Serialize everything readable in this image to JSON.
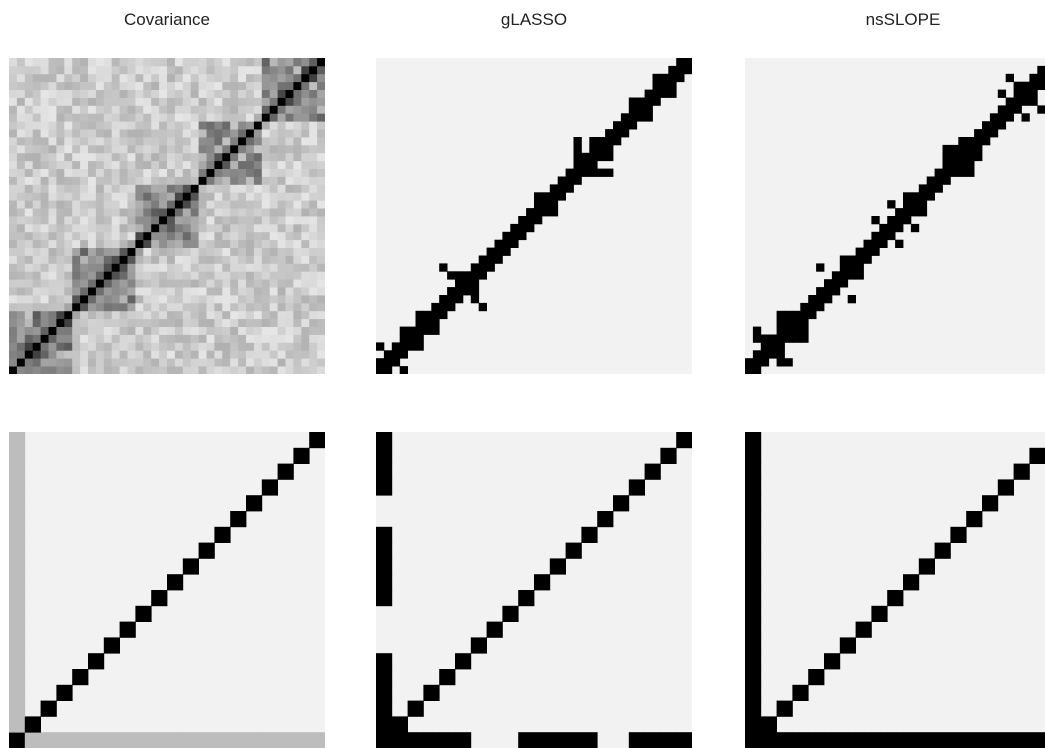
{
  "colors": {
    "background": "#f2f2f2",
    "filled": "#000000",
    "axis_band": "#bdbdbd"
  },
  "columns": [
    {
      "title": "Covariance"
    },
    {
      "title": "gLASSO"
    },
    {
      "title": "nsSLOPE"
    }
  ],
  "chart_data": [
    {
      "type": "heatmap",
      "title": "Covariance",
      "row": "top",
      "n": 40,
      "pattern": "noisy-covariance",
      "values": "continuous grayscale magnitudes; diagonal fully dark; darker 8x8 blocks along the diagonal"
    },
    {
      "type": "heatmap",
      "title": "gLASSO",
      "row": "top",
      "n": 40,
      "pattern": "sparse-binary-blocks",
      "blocks": [
        [
          0,
          5
        ],
        [
          8,
          13
        ],
        [
          16,
          21
        ],
        [
          24,
          29
        ],
        [
          32,
          37
        ]
      ],
      "dense_blocks": [
        [
          5,
          7
        ],
        [
          20,
          22
        ],
        [
          25,
          27
        ],
        [
          32,
          34
        ],
        [
          35,
          37
        ]
      ]
    },
    {
      "type": "heatmap",
      "title": "nsSLOPE",
      "row": "top",
      "n": 40,
      "pattern": "sparse-binary-blocks",
      "blocks": [
        [
          0,
          5
        ],
        [
          8,
          13
        ],
        [
          16,
          21
        ],
        [
          24,
          29
        ],
        [
          32,
          37
        ]
      ],
      "dense_blocks": [
        [
          4,
          7
        ],
        [
          12,
          14
        ],
        [
          20,
          22
        ],
        [
          26,
          28
        ],
        [
          34,
          36
        ]
      ]
    },
    {
      "type": "heatmap",
      "title": "Covariance",
      "row": "bottom",
      "n": 20,
      "pattern": "diagonal-with-gray-hub",
      "hub_value": 0.25,
      "diagonal_value": 1.0
    },
    {
      "type": "heatmap",
      "title": "gLASSO",
      "row": "bottom",
      "n": 20,
      "pattern": "diagonal-with-partial-hub",
      "hub_missing": [
        [
          6,
          8
        ],
        [
          14,
          15
        ]
      ]
    },
    {
      "type": "heatmap",
      "title": "nsSLOPE",
      "row": "bottom",
      "n": 20,
      "pattern": "diagonal-with-full-hub",
      "hub_missing": []
    }
  ]
}
